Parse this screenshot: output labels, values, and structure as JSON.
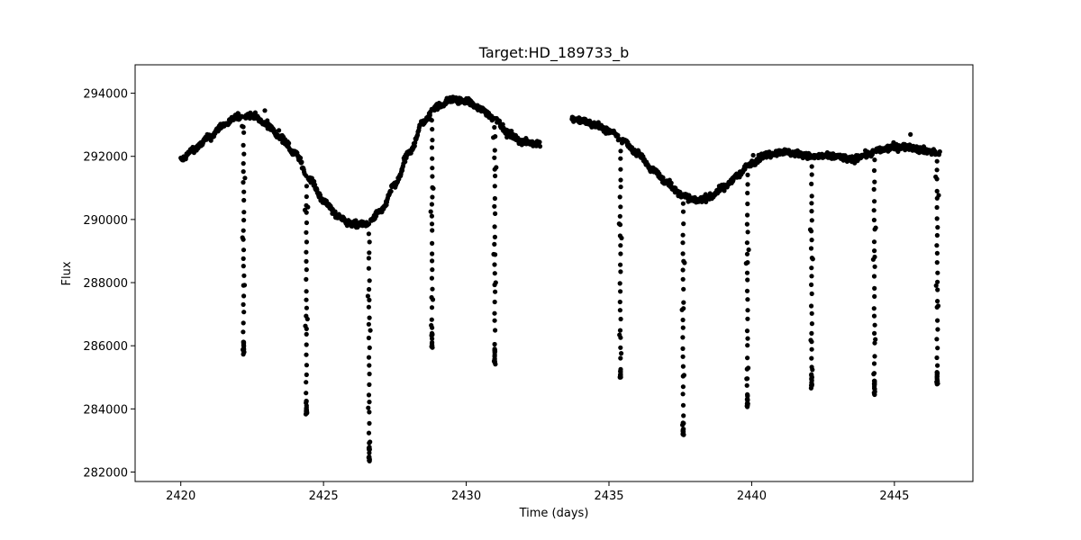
{
  "chart_data": {
    "type": "scatter",
    "title": "Target:HD_189733_b",
    "xlabel": "Time (days)",
    "ylabel": "Flux",
    "xlim": [
      2418.4,
      2447.75
    ],
    "ylim": [
      281700,
      294900
    ],
    "xticks": [
      2420,
      2425,
      2430,
      2435,
      2440,
      2445
    ],
    "yticks": [
      282000,
      284000,
      286000,
      288000,
      290000,
      292000,
      294000
    ],
    "grid": false,
    "marker_color": "#000000",
    "baseline": [
      [
        2420.0,
        291900
      ],
      [
        2420.5,
        292250
      ],
      [
        2421.0,
        292600
      ],
      [
        2421.5,
        293000
      ],
      [
        2422.0,
        293250
      ],
      [
        2422.5,
        293300
      ],
      [
        2423.0,
        293000
      ],
      [
        2423.5,
        292600
      ],
      [
        2424.0,
        292100
      ],
      [
        2424.5,
        291300
      ],
      [
        2425.0,
        290600
      ],
      [
        2425.5,
        290100
      ],
      [
        2426.0,
        289850
      ],
      [
        2426.5,
        289850
      ],
      [
        2427.0,
        290250
      ],
      [
        2427.5,
        291100
      ],
      [
        2428.0,
        292100
      ],
      [
        2428.5,
        293100
      ],
      [
        2429.0,
        293600
      ],
      [
        2429.5,
        293800
      ],
      [
        2430.0,
        293750
      ],
      [
        2430.5,
        293500
      ],
      [
        2431.0,
        293200
      ],
      [
        2431.5,
        292700
      ],
      [
        2432.0,
        292450
      ],
      [
        2432.6,
        292400
      ],
      [
        2433.7,
        293200
      ],
      [
        2434.0,
        293150
      ],
      [
        2434.5,
        293000
      ],
      [
        2435.0,
        292800
      ],
      [
        2435.5,
        292500
      ],
      [
        2436.0,
        292100
      ],
      [
        2436.5,
        291600
      ],
      [
        2437.0,
        291200
      ],
      [
        2437.5,
        290800
      ],
      [
        2438.0,
        290600
      ],
      [
        2438.5,
        290700
      ],
      [
        2439.0,
        291000
      ],
      [
        2439.5,
        291400
      ],
      [
        2440.0,
        291800
      ],
      [
        2440.5,
        292050
      ],
      [
        2441.0,
        292150
      ],
      [
        2441.5,
        292100
      ],
      [
        2442.0,
        292000
      ],
      [
        2442.5,
        292000
      ],
      [
        2443.0,
        292000
      ],
      [
        2443.5,
        291900
      ],
      [
        2444.0,
        292050
      ],
      [
        2444.5,
        292200
      ],
      [
        2445.0,
        292300
      ],
      [
        2445.5,
        292300
      ],
      [
        2446.0,
        292200
      ],
      [
        2446.6,
        292100
      ]
    ],
    "gap": [
      2432.6,
      2433.7
    ],
    "transits": [
      {
        "t": 2422.2,
        "min_flux": 285800
      },
      {
        "t": 2424.4,
        "min_flux": 283900
      },
      {
        "t": 2426.6,
        "min_flux": 282400
      },
      {
        "t": 2428.8,
        "min_flux": 286000
      },
      {
        "t": 2431.0,
        "min_flux": 285500
      },
      {
        "t": 2435.4,
        "min_flux": 285000
      },
      {
        "t": 2437.6,
        "min_flux": 283200
      },
      {
        "t": 2439.85,
        "min_flux": 284100
      },
      {
        "t": 2442.1,
        "min_flux": 284700
      },
      {
        "t": 2444.3,
        "min_flux": 284500
      },
      {
        "t": 2446.5,
        "min_flux": 284800
      }
    ],
    "transit_half_width_days": 0.055
  }
}
